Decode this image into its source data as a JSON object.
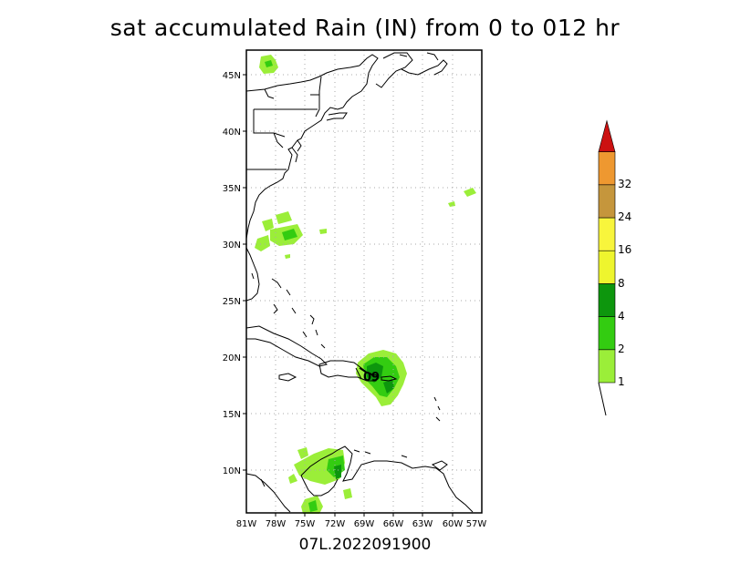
{
  "title": "sat accumulated Rain (IN) from 0 to 012 hr",
  "caption": "07L.2022091900",
  "map": {
    "lat_ticks": [
      "45N",
      "40N",
      "35N",
      "30N",
      "25N",
      "20N",
      "15N",
      "10N"
    ],
    "lon_ticks": [
      "81W",
      "78W",
      "75W",
      "72W",
      "69W",
      "66W",
      "63W",
      "60W",
      "57W"
    ],
    "lat_range": [
      6.5,
      47.0
    ],
    "lon_range": [
      -81,
      -57
    ],
    "grid": "dotted",
    "storm_label": "09"
  },
  "colorbar": {
    "levels": [
      "1",
      "2",
      "4",
      "8",
      "16",
      "24",
      "32"
    ],
    "colors": [
      "#9bee39",
      "#33cc11",
      "#0d960d",
      "#eef52e",
      "#f8f53c",
      "#c5963c",
      "#ee9830",
      "#cc1111"
    ]
  }
}
